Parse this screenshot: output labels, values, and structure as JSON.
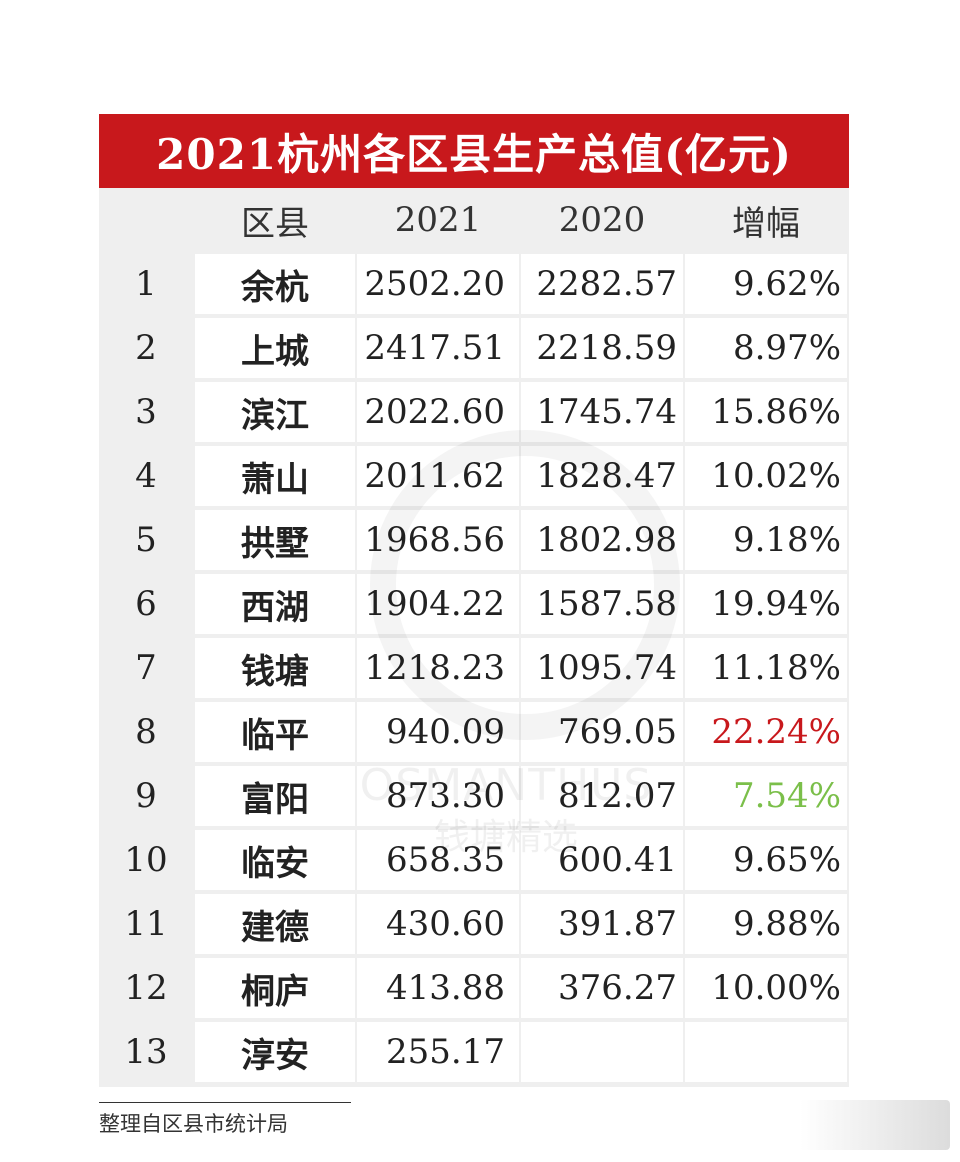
{
  "title": "2021杭州各区县生产总值(亿元)",
  "headers": {
    "rank": "",
    "name": "区县",
    "y2021": "2021",
    "y2020": "2020",
    "growth": "增幅"
  },
  "rows": [
    {
      "rank": "1",
      "name": "余杭",
      "y2021": "2502.20",
      "y2020": "2282.57",
      "growth": "9.62%",
      "color": "#222222"
    },
    {
      "rank": "2",
      "name": "上城",
      "y2021": "2417.51",
      "y2020": "2218.59",
      "growth": "8.97%",
      "color": "#222222"
    },
    {
      "rank": "3",
      "name": "滨江",
      "y2021": "2022.60",
      "y2020": "1745.74",
      "growth": "15.86%",
      "color": "#222222"
    },
    {
      "rank": "4",
      "name": "萧山",
      "y2021": "2011.62",
      "y2020": "1828.47",
      "growth": "10.02%",
      "color": "#222222"
    },
    {
      "rank": "5",
      "name": "拱墅",
      "y2021": "1968.56",
      "y2020": "1802.98",
      "growth": "9.18%",
      "color": "#222222"
    },
    {
      "rank": "6",
      "name": "西湖",
      "y2021": "1904.22",
      "y2020": "1587.58",
      "growth": "19.94%",
      "color": "#222222"
    },
    {
      "rank": "7",
      "name": "钱塘",
      "y2021": "1218.23",
      "y2020": "1095.74",
      "growth": "11.18%",
      "color": "#222222"
    },
    {
      "rank": "8",
      "name": "临平",
      "y2021": "940.09",
      "y2020": "769.05",
      "growth": "22.24%",
      "color": "#c8181c"
    },
    {
      "rank": "9",
      "name": "富阳",
      "y2021": "873.30",
      "y2020": "812.07",
      "growth": "7.54%",
      "color": "#7bbf4a"
    },
    {
      "rank": "10",
      "name": "临安",
      "y2021": "658.35",
      "y2020": "600.41",
      "growth": "9.65%",
      "color": "#222222"
    },
    {
      "rank": "11",
      "name": "建德",
      "y2021": "430.60",
      "y2020": "391.87",
      "growth": "9.88%",
      "color": "#222222"
    },
    {
      "rank": "12",
      "name": "桐庐",
      "y2021": "413.88",
      "y2020": "376.27",
      "growth": "10.00%",
      "color": "#222222"
    },
    {
      "rank": "13",
      "name": "淳安",
      "y2021": "255.17",
      "y2020": "",
      "growth": "",
      "color": "#222222"
    }
  ],
  "watermark": {
    "text": "OSMANTHUS",
    "sub": "钱塘精选"
  },
  "footer": "整理自区县市统计局"
}
